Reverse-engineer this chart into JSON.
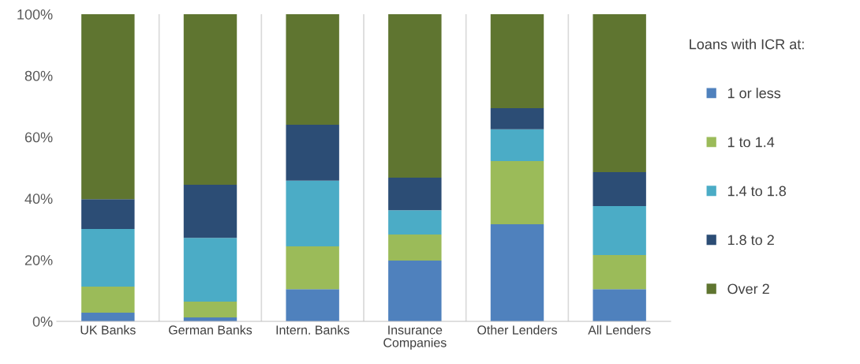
{
  "chart_data": {
    "type": "bar",
    "stacked": true,
    "categories": [
      "UK Banks",
      "German Banks",
      "Intern. Banks",
      "Insurance\nCompanies",
      "Other Lenders",
      "All Lenders"
    ],
    "series": [
      {
        "name": "1 or less",
        "color": "#4f81bd",
        "values": [
          2.8,
          1.3,
          10.5,
          19.8,
          31.6,
          10.5
        ]
      },
      {
        "name": "1 to 1.4",
        "color": "#9bbb59",
        "values": [
          8.5,
          5.1,
          13.9,
          8.5,
          20.6,
          11.1
        ]
      },
      {
        "name": "1.4 to 1.8",
        "color": "#4bacc6",
        "values": [
          18.8,
          20.8,
          21.4,
          7.9,
          10.3,
          15.9
        ]
      },
      {
        "name": "1.8 to 2",
        "color": "#2c4d75",
        "values": [
          9.7,
          17.3,
          18.2,
          10.6,
          6.9,
          11.1
        ]
      },
      {
        "name": "Over 2",
        "color": "#5f7530",
        "values": [
          60.2,
          55.5,
          36.0,
          53.2,
          30.6,
          51.4
        ]
      }
    ],
    "legend_title": "Loans with ICR at:",
    "legend": "right",
    "grid": "x",
    "ylim": [
      0,
      100
    ],
    "yticks": [
      {
        "value": 0,
        "label": "0%"
      },
      {
        "value": 20,
        "label": "20%"
      },
      {
        "value": 40,
        "label": "40%"
      },
      {
        "value": 60,
        "label": "60%"
      },
      {
        "value": 80,
        "label": "80%"
      },
      {
        "value": 100,
        "label": "100%"
      }
    ]
  }
}
